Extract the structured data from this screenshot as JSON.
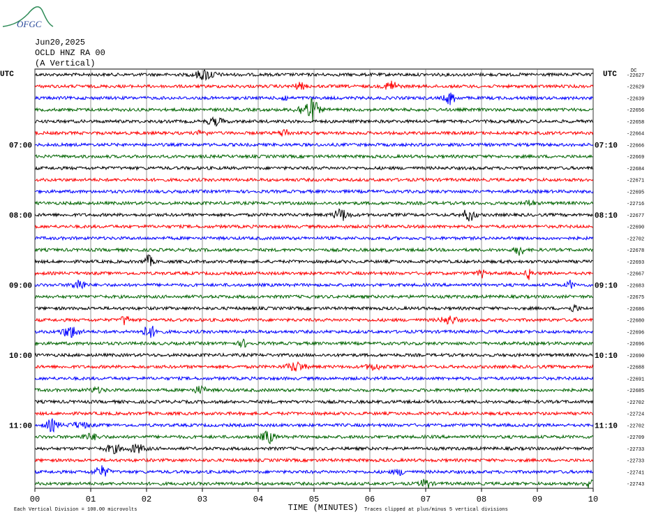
{
  "logo": "OFGC",
  "chart_data": {
    "type": "helicorder",
    "title_lines": [
      "Jun20,2025",
      "OCLD HNZ RA 00",
      "(A Vertical)"
    ],
    "left_axis_title": "UTC",
    "right_axis_title": "UTC",
    "dc_title": "DC",
    "xlabel": "TIME (MINUTES)",
    "footer_left": "Each Vertical Division =  100.00 microvolts",
    "footer_right": "Traces clipped at plus/minus 5 vertical divisions",
    "xlim": [
      0,
      10
    ],
    "xticks": [
      {
        "value": 0,
        "label": "00"
      },
      {
        "value": 1,
        "label": "01"
      },
      {
        "value": 2,
        "label": "02"
      },
      {
        "value": 3,
        "label": "03"
      },
      {
        "value": 4,
        "label": "04"
      },
      {
        "value": 5,
        "label": "05"
      },
      {
        "value": 6,
        "label": "06"
      },
      {
        "value": 7,
        "label": "07"
      },
      {
        "value": 8,
        "label": "08"
      },
      {
        "value": 9,
        "label": "09"
      },
      {
        "value": 10,
        "label": "10"
      }
    ],
    "grid": true,
    "trace_colors": [
      "#000000",
      "#ff0000",
      "#0000ff",
      "#006400"
    ],
    "left_labels": [
      null,
      null,
      null,
      null,
      null,
      null,
      "07:00",
      null,
      null,
      null,
      null,
      null,
      "08:00",
      null,
      null,
      null,
      null,
      null,
      "09:00",
      null,
      null,
      null,
      null,
      null,
      "10:00",
      null,
      null,
      null,
      null,
      null,
      "11:00",
      null,
      null,
      null,
      null,
      null
    ],
    "right_labels": [
      null,
      null,
      null,
      null,
      null,
      null,
      "07:10",
      null,
      null,
      null,
      null,
      null,
      "08:10",
      null,
      null,
      null,
      null,
      null,
      "09:10",
      null,
      null,
      null,
      null,
      null,
      "10:10",
      null,
      null,
      null,
      null,
      null,
      "11:10",
      null,
      null,
      null,
      null,
      null
    ],
    "dc_labels": [
      "-22627",
      "-22629",
      "-22639",
      "-22656",
      "-22658",
      "-22664",
      "-22666",
      "-22669",
      "-22684",
      "-22671",
      "-22695",
      "-22716",
      "-22677",
      "-22690",
      "-22702",
      "-22678",
      "-22693",
      "-22667",
      "-22683",
      "-22675",
      "-22686",
      "-22680",
      "-22696",
      "-22696",
      "-22690",
      "-22688",
      "-22691",
      "-22685",
      "-22702",
      "-22724",
      "-22702",
      "-22709",
      "-22733",
      "-22733",
      "-22741",
      "-22743"
    ]
  }
}
